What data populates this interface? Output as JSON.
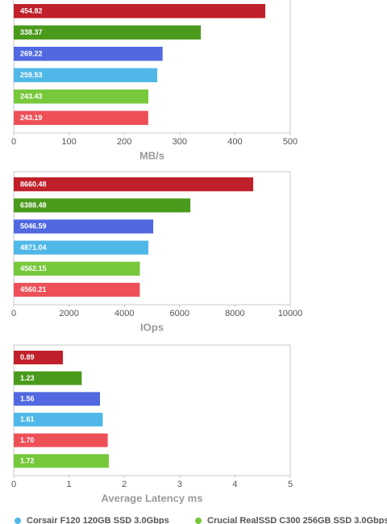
{
  "chart_data": [
    {
      "type": "bar",
      "x_label": "MB/s",
      "values": [
        454.82,
        338.37,
        269.22,
        259.53,
        243.43,
        243.19
      ],
      "colors": [
        "#c0202a",
        "#4a9a1c",
        "#5068e0",
        "#50b8e8",
        "#78c83c",
        "#ee5058"
      ],
      "xlim": [
        0,
        500
      ],
      "xticks": [
        0,
        100,
        200,
        300,
        400,
        500
      ]
    },
    {
      "type": "bar",
      "x_label": "IOps",
      "values": [
        8660.48,
        6388.48,
        5046.59,
        4871.04,
        4562.15,
        4560.21
      ],
      "colors": [
        "#c0202a",
        "#4a9a1c",
        "#5068e0",
        "#50b8e8",
        "#78c83c",
        "#ee5058"
      ],
      "xlim": [
        0,
        10000
      ],
      "xticks": [
        0,
        2000,
        4000,
        6000,
        8000,
        10000
      ]
    },
    {
      "type": "bar",
      "x_label": "Average Latency ms",
      "values": [
        0.89,
        1.23,
        1.56,
        1.61,
        1.7,
        1.72
      ],
      "value_labels": [
        "0.89",
        "1.23",
        "1.56",
        "1.61",
        "1.70",
        "1.72"
      ],
      "colors": [
        "#c0202a",
        "#4a9a1c",
        "#5068e0",
        "#50b8e8",
        "#ee5058",
        "#78c83c"
      ],
      "xlim": [
        0,
        5
      ],
      "xticks": [
        0,
        1,
        2,
        3,
        4,
        5
      ],
      "legend": [
        {
          "name": "Corsair F120 120GB SSD 3.0Gbps",
          "color": "#50b8e8"
        },
        {
          "name": "Crucial RealSSD C300 256GB SSD 3.0Gbps",
          "color": "#78c83c"
        }
      ]
    }
  ]
}
